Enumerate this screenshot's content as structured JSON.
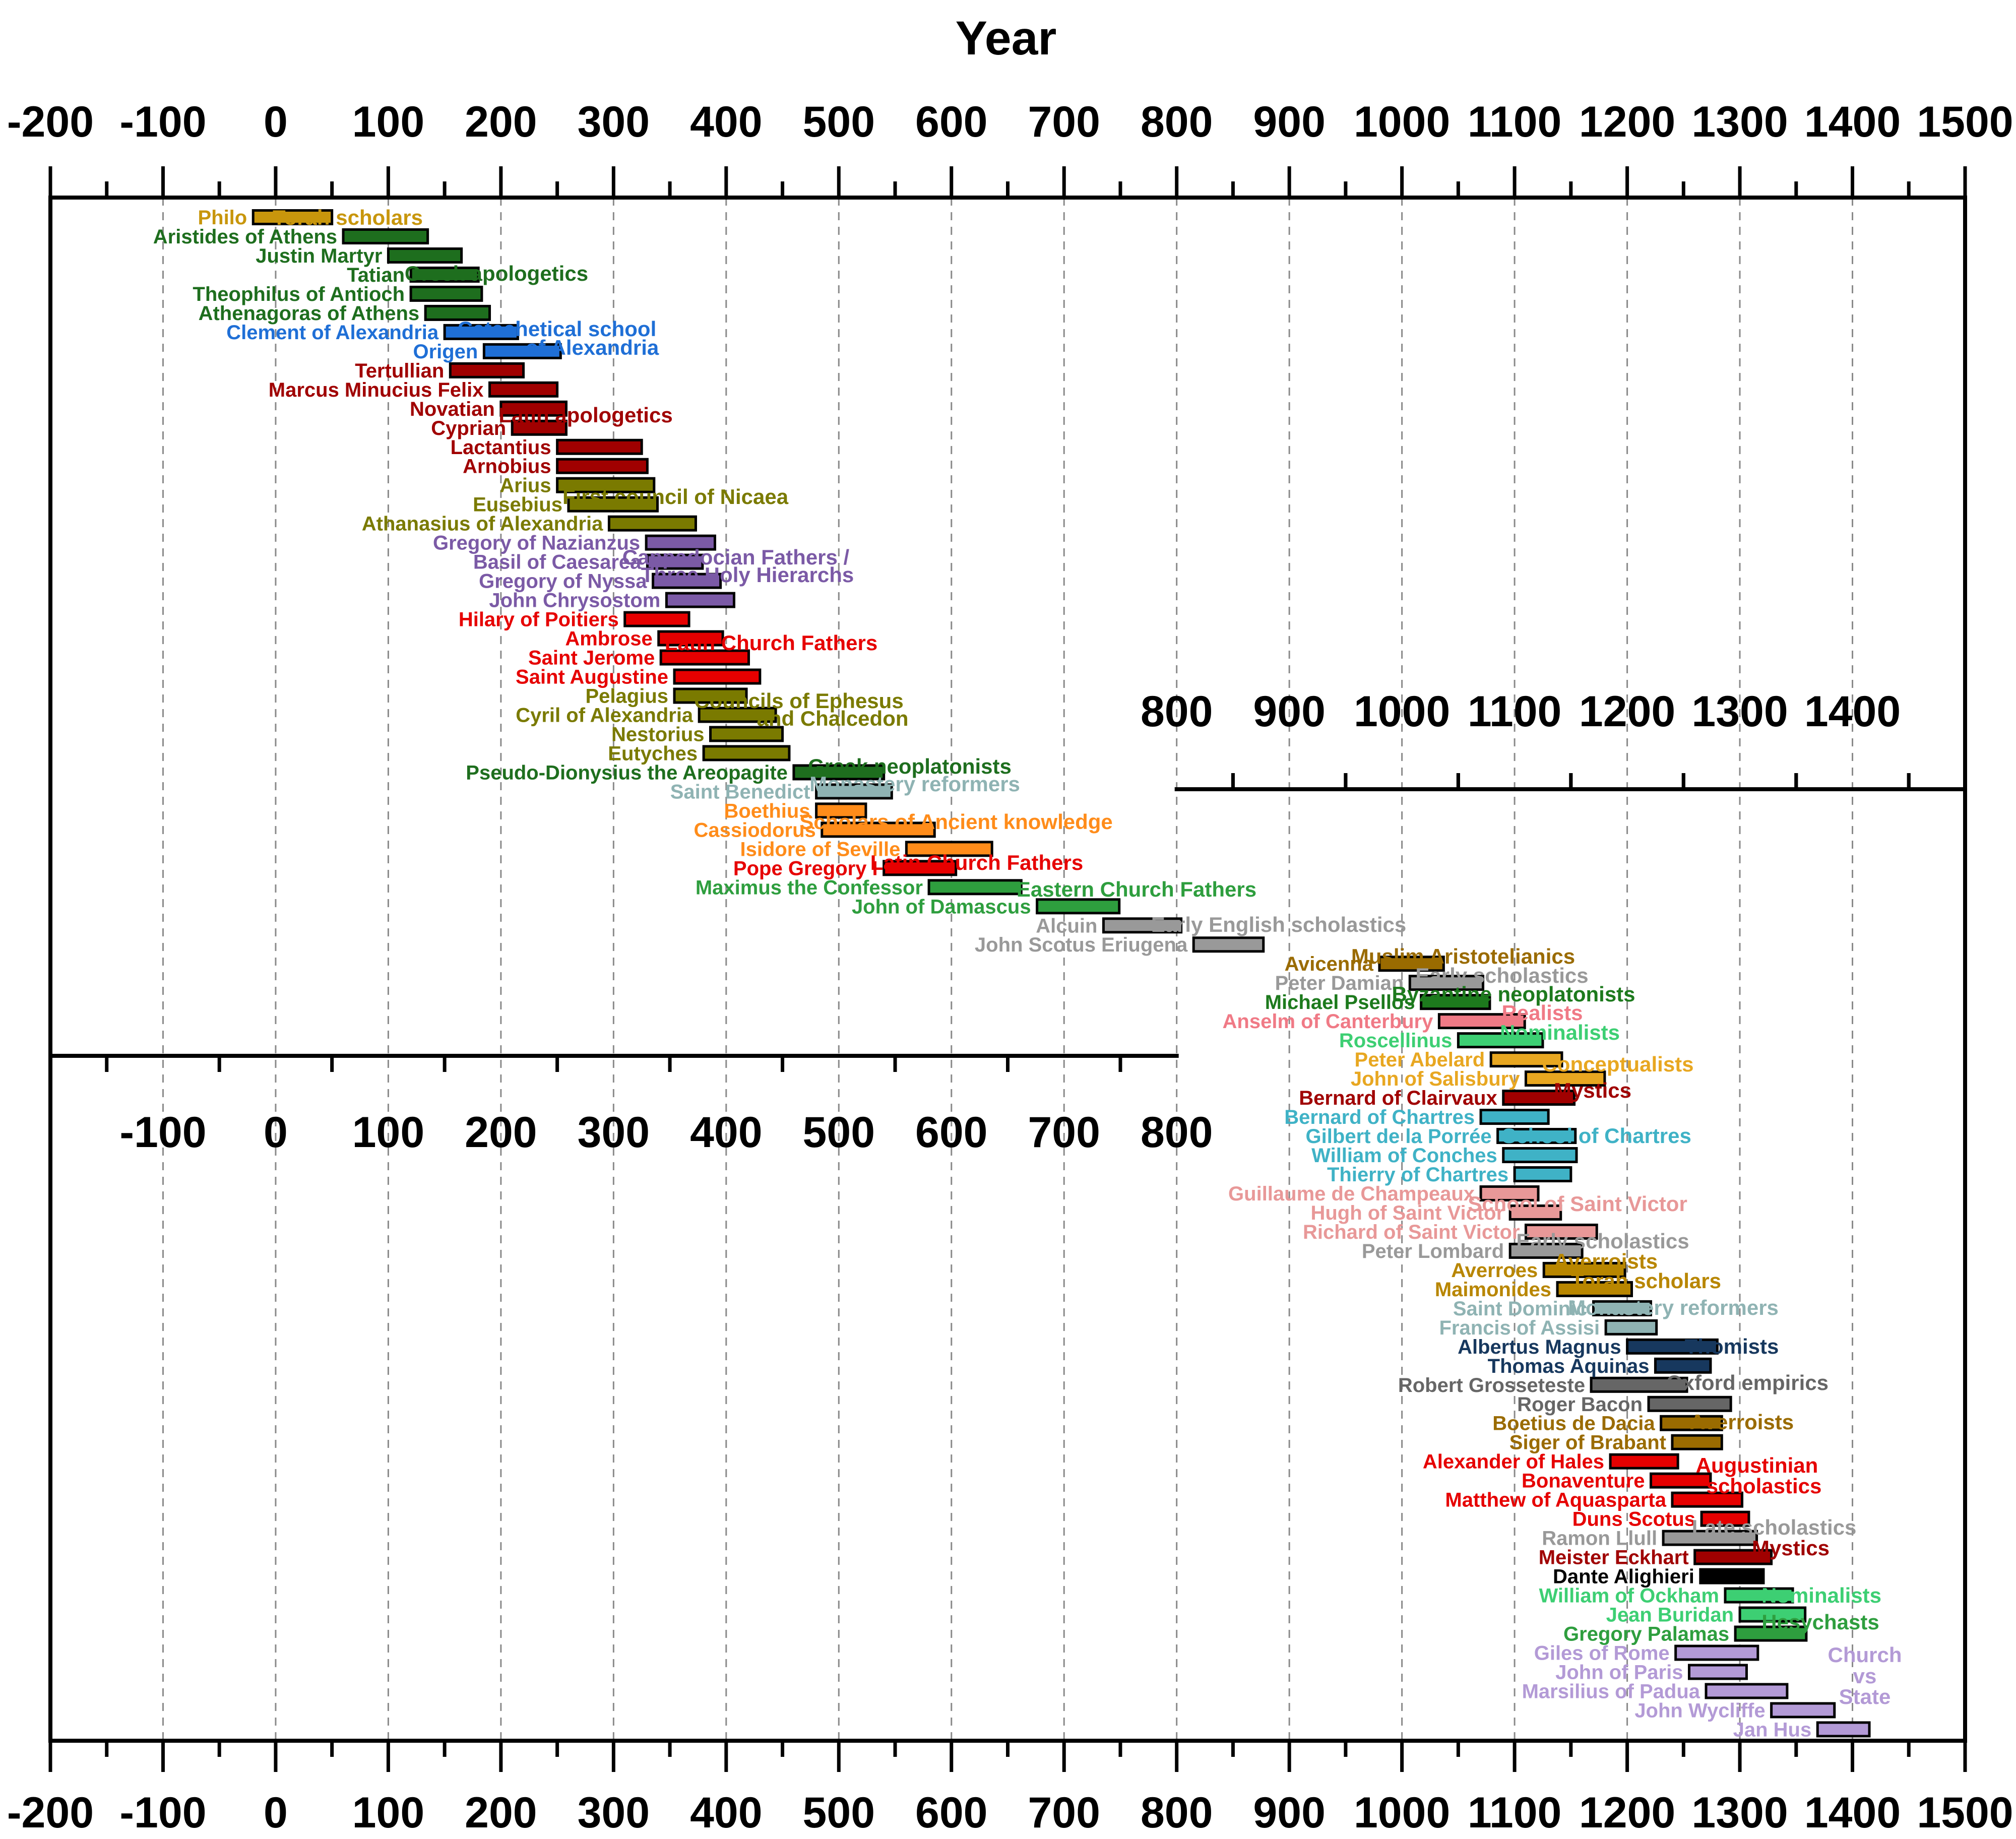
{
  "chart_data": {
    "type": "bar",
    "subtype": "timeline",
    "title": "Year",
    "xlim": [
      -200,
      1500
    ],
    "grid": true,
    "axes": {
      "top": [
        "-200",
        "-100",
        "0",
        "100",
        "200",
        "300",
        "400",
        "500",
        "600",
        "700",
        "800",
        "900",
        "1000",
        "1100",
        "1200",
        "1300",
        "1400",
        "1500"
      ],
      "inner_upper": [
        "800",
        "900",
        "1000",
        "1100",
        "1200",
        "1300",
        "1400"
      ],
      "inner_lower": [
        "-100",
        "0",
        "100",
        "200",
        "300",
        "400",
        "500",
        "600",
        "700",
        "800"
      ],
      "bottom": [
        "-200",
        "-100",
        "0",
        "100",
        "200",
        "300",
        "400",
        "500",
        "600",
        "700",
        "800",
        "900",
        "1000",
        "1100",
        "1200",
        "1300",
        "1400",
        "1500"
      ]
    },
    "colors": {
      "gold": "#c8960c",
      "green": "#1e6e1e",
      "blue": "#1f6fd6",
      "darkred": "#a00000",
      "olive": "#7a7a00",
      "purple": "#7b5aa6",
      "red": "#e60000",
      "lightslate": "#8fb3b3",
      "orange": "#ff8c1a",
      "lightgreen": "#2e9e3e",
      "gray": "#999999",
      "brown": "#9a6b00",
      "midgreen": "#1d7a1d",
      "pink": "#f07a86",
      "mint": "#3dcf73",
      "yellow": "#e8a721",
      "cyan": "#3fb2c6",
      "rose": "#e89898",
      "darkgold": "#b88600",
      "navy": "#17385e",
      "dimgray": "#666666",
      "black": "#000000",
      "lavender": "#b39ad6"
    },
    "series": [
      {
        "name": "Philo",
        "start": -20,
        "end": 50,
        "color": "gold"
      },
      {
        "name": "Aristides of Athens",
        "start": 60,
        "end": 135,
        "color": "green"
      },
      {
        "name": "Justin Martyr",
        "start": 100,
        "end": 165,
        "color": "green"
      },
      {
        "name": "Tatian",
        "start": 120,
        "end": 180,
        "color": "green"
      },
      {
        "name": "Theophilus of Antioch",
        "start": 120,
        "end": 183,
        "color": "green"
      },
      {
        "name": "Athenagoras of Athens",
        "start": 133,
        "end": 190,
        "color": "green"
      },
      {
        "name": "Clement of Alexandria",
        "start": 150,
        "end": 215,
        "color": "blue"
      },
      {
        "name": "Origen",
        "start": 185,
        "end": 253,
        "color": "blue"
      },
      {
        "name": "Tertullian",
        "start": 155,
        "end": 220,
        "color": "darkred"
      },
      {
        "name": "Marcus Minucius Felix",
        "start": 190,
        "end": 250,
        "color": "darkred"
      },
      {
        "name": "Novatian",
        "start": 200,
        "end": 258,
        "color": "darkred"
      },
      {
        "name": "Cyprian",
        "start": 210,
        "end": 258,
        "color": "darkred"
      },
      {
        "name": "Lactantius",
        "start": 250,
        "end": 325,
        "color": "darkred"
      },
      {
        "name": "Arnobius",
        "start": 250,
        "end": 330,
        "color": "darkred"
      },
      {
        "name": "Arius",
        "start": 250,
        "end": 336,
        "color": "olive"
      },
      {
        "name": "Eusebius",
        "start": 260,
        "end": 339,
        "color": "olive"
      },
      {
        "name": "Athanasius of Alexandria",
        "start": 296,
        "end": 373,
        "color": "olive"
      },
      {
        "name": "Gregory of Nazianzus",
        "start": 329,
        "end": 390,
        "color": "purple"
      },
      {
        "name": "Basil of Caesarea",
        "start": 330,
        "end": 379,
        "color": "purple"
      },
      {
        "name": "Gregory of Nyssa",
        "start": 335,
        "end": 395,
        "color": "purple"
      },
      {
        "name": "John Chrysostom",
        "start": 347,
        "end": 407,
        "color": "purple"
      },
      {
        "name": "Hilary of Poitiers",
        "start": 310,
        "end": 367,
        "color": "red"
      },
      {
        "name": "Ambrose",
        "start": 340,
        "end": 397,
        "color": "red"
      },
      {
        "name": "Saint Jerome",
        "start": 342,
        "end": 420,
        "color": "red"
      },
      {
        "name": "Saint Augustine",
        "start": 354,
        "end": 430,
        "color": "red"
      },
      {
        "name": "Pelagius",
        "start": 354,
        "end": 418,
        "color": "olive"
      },
      {
        "name": "Cyril of Alexandria",
        "start": 376,
        "end": 444,
        "color": "olive"
      },
      {
        "name": "Nestorius",
        "start": 386,
        "end": 450,
        "color": "olive"
      },
      {
        "name": "Eutyches",
        "start": 380,
        "end": 456,
        "color": "olive"
      },
      {
        "name": "Pseudo-Dionysius the Areopagite",
        "start": 460,
        "end": 540,
        "color": "green"
      },
      {
        "name": "Saint Benedict",
        "start": 480,
        "end": 547,
        "color": "lightslate"
      },
      {
        "name": "Boethius",
        "start": 480,
        "end": 524,
        "color": "orange"
      },
      {
        "name": "Cassiodorus",
        "start": 485,
        "end": 585,
        "color": "orange"
      },
      {
        "name": "Isidore of Seville",
        "start": 560,
        "end": 636,
        "color": "orange"
      },
      {
        "name": "Pope Gregory I",
        "start": 540,
        "end": 604,
        "color": "red"
      },
      {
        "name": "Maximus the Confessor",
        "start": 580,
        "end": 662,
        "color": "lightgreen"
      },
      {
        "name": "John of Damascus",
        "start": 676,
        "end": 749,
        "color": "lightgreen"
      },
      {
        "name": "Alcuin",
        "start": 735,
        "end": 804,
        "color": "gray"
      },
      {
        "name": "John Scotus Eriugena",
        "start": 815,
        "end": 877,
        "color": "gray"
      },
      {
        "name": "Avicenna",
        "start": 980,
        "end": 1037,
        "color": "brown"
      },
      {
        "name": "Peter Damian",
        "start": 1007,
        "end": 1072,
        "color": "gray"
      },
      {
        "name": "Michael Psellos",
        "start": 1017,
        "end": 1078,
        "color": "midgreen"
      },
      {
        "name": "Anselm of Canterbury",
        "start": 1033,
        "end": 1109,
        "color": "pink"
      },
      {
        "name": "Roscellinus",
        "start": 1050,
        "end": 1125,
        "color": "mint"
      },
      {
        "name": "Peter Abelard",
        "start": 1079,
        "end": 1142,
        "color": "yellow"
      },
      {
        "name": "John of Salisbury",
        "start": 1110,
        "end": 1180,
        "color": "yellow"
      },
      {
        "name": "Bernard of Clairvaux",
        "start": 1090,
        "end": 1153,
        "color": "darkred"
      },
      {
        "name": "Bernard of Chartres",
        "start": 1070,
        "end": 1130,
        "color": "cyan"
      },
      {
        "name": "Gilbert de la Porrée",
        "start": 1085,
        "end": 1154,
        "color": "cyan"
      },
      {
        "name": "William of Conches",
        "start": 1090,
        "end": 1155,
        "color": "cyan"
      },
      {
        "name": "Thierry of Chartres",
        "start": 1100,
        "end": 1150,
        "color": "cyan"
      },
      {
        "name": "Guillaume de Champeaux",
        "start": 1070,
        "end": 1121,
        "color": "rose"
      },
      {
        "name": "Hugh of Saint Victor",
        "start": 1096,
        "end": 1141,
        "color": "rose"
      },
      {
        "name": "Richard of Saint Victor",
        "start": 1110,
        "end": 1173,
        "color": "rose"
      },
      {
        "name": "Peter Lombard",
        "start": 1096,
        "end": 1160,
        "color": "gray"
      },
      {
        "name": "Averroes",
        "start": 1126,
        "end": 1198,
        "color": "darkgold"
      },
      {
        "name": "Maimonides",
        "start": 1138,
        "end": 1204,
        "color": "darkgold"
      },
      {
        "name": "Saint Dominic",
        "start": 1170,
        "end": 1221,
        "color": "lightslate"
      },
      {
        "name": "Francis of Assisi",
        "start": 1181,
        "end": 1226,
        "color": "lightslate"
      },
      {
        "name": "Albertus Magnus",
        "start": 1200,
        "end": 1280,
        "color": "navy"
      },
      {
        "name": "Thomas Aquinas",
        "start": 1225,
        "end": 1274,
        "color": "navy"
      },
      {
        "name": "Robert Grosseteste",
        "start": 1168,
        "end": 1253,
        "color": "dimgray"
      },
      {
        "name": "Roger Bacon",
        "start": 1219,
        "end": 1292,
        "color": "dimgray"
      },
      {
        "name": "Boetius de Dacia",
        "start": 1230,
        "end": 1284,
        "color": "brown"
      },
      {
        "name": "Siger of Brabant",
        "start": 1240,
        "end": 1284,
        "color": "brown"
      },
      {
        "name": "Alexander of Hales",
        "start": 1185,
        "end": 1245,
        "color": "red"
      },
      {
        "name": "Bonaventure",
        "start": 1221,
        "end": 1274,
        "color": "red"
      },
      {
        "name": "Matthew of Aquasparta",
        "start": 1240,
        "end": 1302,
        "color": "red"
      },
      {
        "name": "Duns Scotus",
        "start": 1266,
        "end": 1308,
        "color": "red"
      },
      {
        "name": "Ramon Llull",
        "start": 1232,
        "end": 1315,
        "color": "gray"
      },
      {
        "name": "Meister Eckhart",
        "start": 1260,
        "end": 1328,
        "color": "darkred"
      },
      {
        "name": "Dante Alighieri",
        "start": 1265,
        "end": 1321,
        "color": "black"
      },
      {
        "name": "William of Ockham",
        "start": 1287,
        "end": 1347,
        "color": "mint"
      },
      {
        "name": "Jean Buridan",
        "start": 1300,
        "end": 1358,
        "color": "mint"
      },
      {
        "name": "Gregory Palamas",
        "start": 1296,
        "end": 1359,
        "color": "lightgreen"
      },
      {
        "name": "Giles of Rome",
        "start": 1243,
        "end": 1316,
        "color": "lavender"
      },
      {
        "name": "John of Paris",
        "start": 1255,
        "end": 1306,
        "color": "lavender"
      },
      {
        "name": "Marsilius of Padua",
        "start": 1270,
        "end": 1342,
        "color": "lavender"
      },
      {
        "name": "John Wycliffe",
        "start": 1328,
        "end": 1384,
        "color": "lavender"
      },
      {
        "name": "Jan Hus",
        "start": 1369,
        "end": 1415,
        "color": "lavender"
      }
    ],
    "annotations": [
      {
        "text": "Torah scholars",
        "color": "gold"
      },
      {
        "text": "Greek apologetics",
        "color": "green"
      },
      {
        "text": "Catechetical school",
        "color": "blue"
      },
      {
        "text": "of Alexandria",
        "color": "blue"
      },
      {
        "text": "Latin apologetics",
        "color": "darkred"
      },
      {
        "text": "First council of Nicaea",
        "color": "olive"
      },
      {
        "text": "Cappadocian Fathers /",
        "color": "purple"
      },
      {
        "text": "Three Holy Hierarchs",
        "color": "purple"
      },
      {
        "text": "Latin Church Fathers",
        "color": "red"
      },
      {
        "text": "Councils of Ephesus",
        "color": "olive"
      },
      {
        "text": "and Chalcedon",
        "color": "olive"
      },
      {
        "text": "Greek neoplatonists",
        "color": "green"
      },
      {
        "text": "Monastery reformers",
        "color": "lightslate"
      },
      {
        "text": "Scholars of Ancient knowledge",
        "color": "orange"
      },
      {
        "text": "Latin Church Fathers",
        "color": "red"
      },
      {
        "text": "Eastern Church Fathers",
        "color": "lightgreen"
      },
      {
        "text": "Early English scholastics",
        "color": "gray"
      },
      {
        "text": "Muslim Aristotelianics",
        "color": "brown"
      },
      {
        "text": "Early scholastics",
        "color": "gray"
      },
      {
        "text": "Byzantine neoplatonists",
        "color": "midgreen"
      },
      {
        "text": "Realists",
        "color": "pink"
      },
      {
        "text": "Nominalists",
        "color": "mint"
      },
      {
        "text": "Conceptualists",
        "color": "yellow"
      },
      {
        "text": "Mystics",
        "color": "darkred"
      },
      {
        "text": "School of Chartres",
        "color": "cyan"
      },
      {
        "text": "School of Saint Victor",
        "color": "rose"
      },
      {
        "text": "Early scholastics",
        "color": "gray"
      },
      {
        "text": "Averroists",
        "color": "darkgold"
      },
      {
        "text": "Torah scholars",
        "color": "darkgold"
      },
      {
        "text": "Monastery reformers",
        "color": "lightslate"
      },
      {
        "text": "Thomists",
        "color": "navy"
      },
      {
        "text": "Oxford empirics",
        "color": "dimgray"
      },
      {
        "text": "Averroists",
        "color": "brown"
      },
      {
        "text": "Augustinian",
        "color": "red"
      },
      {
        "text": "scholastics",
        "color": "red"
      },
      {
        "text": "Late scholastics",
        "color": "gray"
      },
      {
        "text": "Mystics",
        "color": "darkred"
      },
      {
        "text": "Nominalists",
        "color": "mint"
      },
      {
        "text": "Hesychasts",
        "color": "lightgreen"
      },
      {
        "text": "Church",
        "color": "lavender"
      },
      {
        "text": "vs",
        "color": "lavender"
      },
      {
        "text": "State",
        "color": "lavender"
      }
    ]
  }
}
